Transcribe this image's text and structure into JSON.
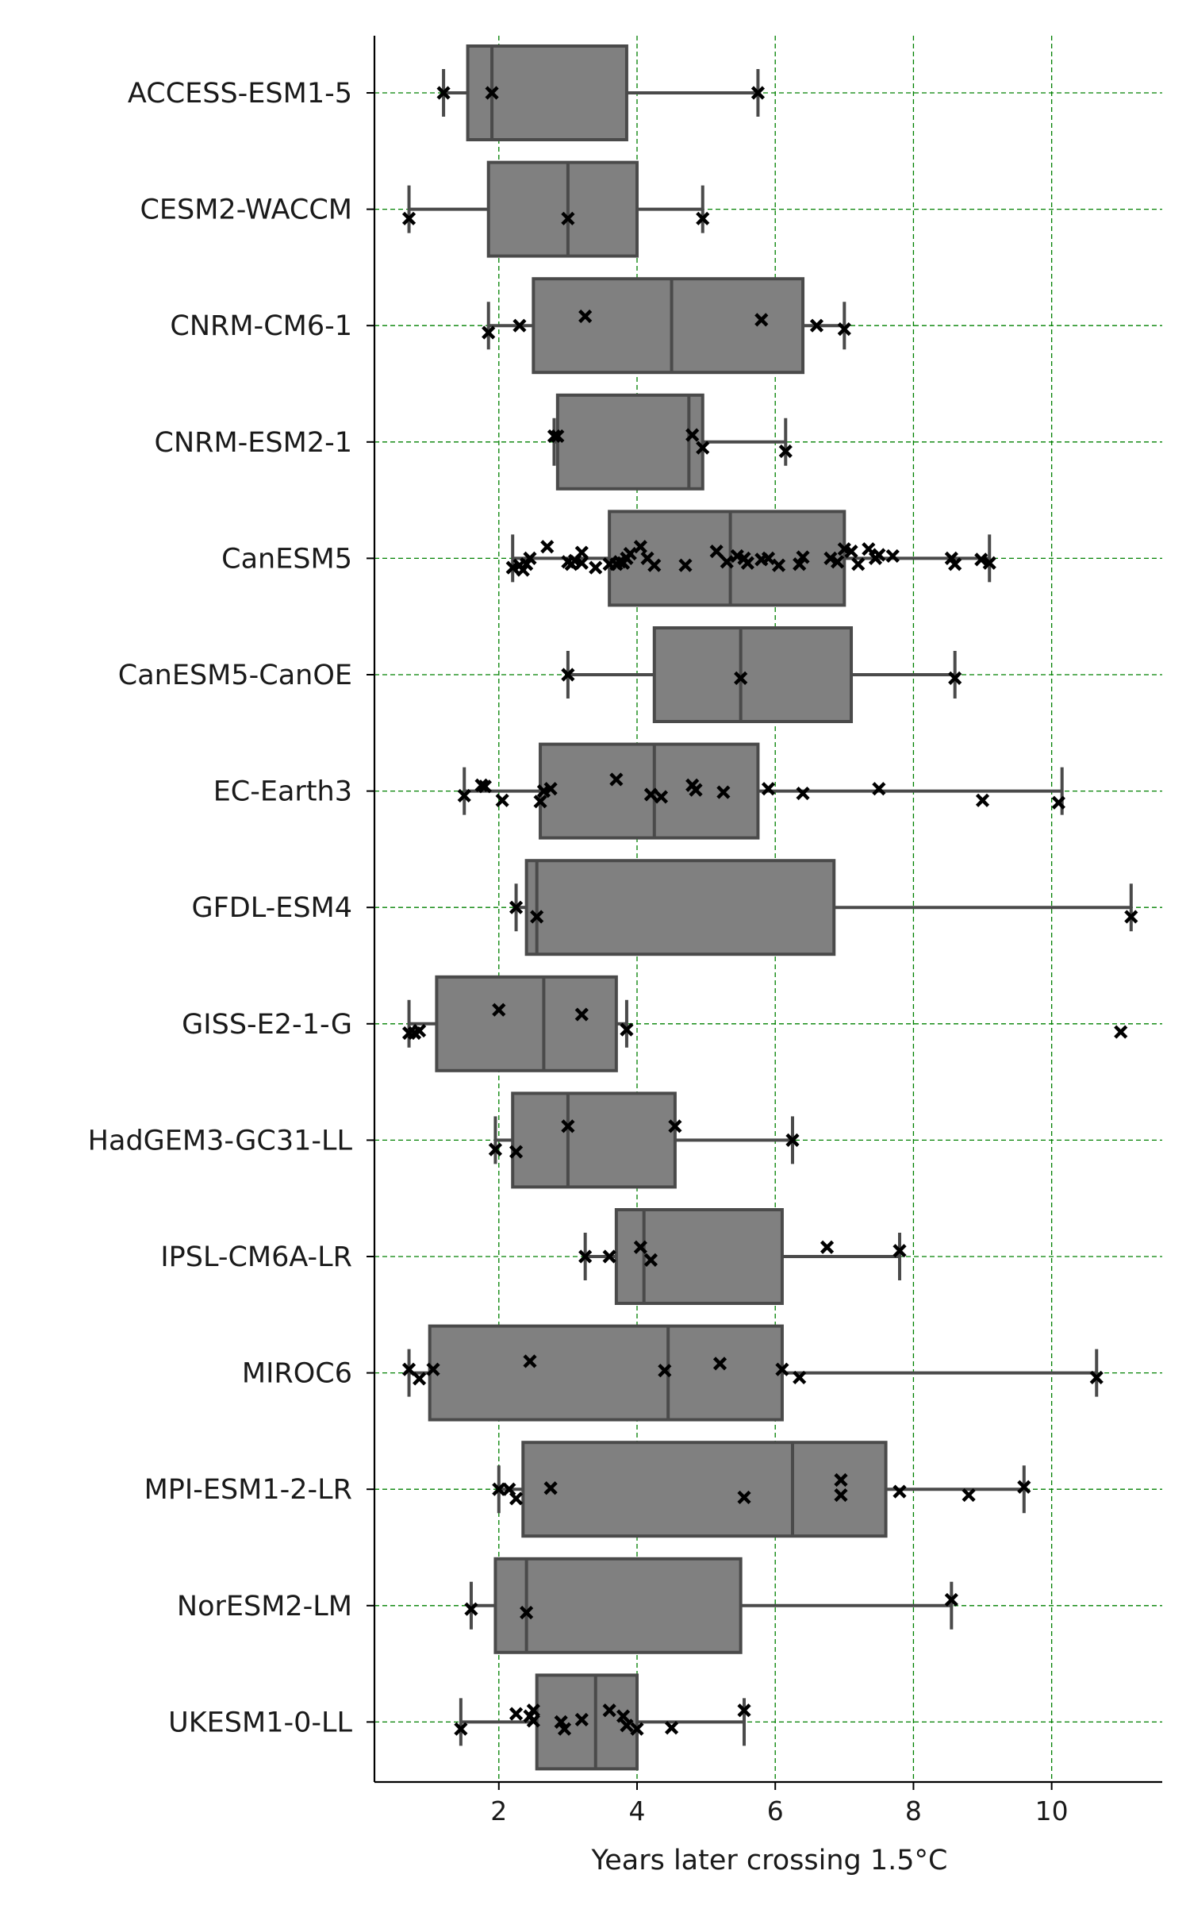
{
  "chart_data": {
    "type": "box",
    "orientation": "horizontal",
    "xlabel": "Years later crossing 1.5°C",
    "ylabel": "",
    "title": "",
    "xlim": [
      0.2,
      11.6
    ],
    "xticks": [
      2,
      4,
      6,
      8,
      10
    ],
    "grid": {
      "x": true,
      "y": true,
      "style": "dashed",
      "color": "#008000"
    },
    "box_color": "#808080",
    "edge_color": "#4a4a4a",
    "marker": "x",
    "marker_color": "#000000",
    "models": [
      {
        "name": "ACCESS-ESM1-5",
        "whisker_low": 1.2,
        "q1": 1.55,
        "median": 1.9,
        "q3": 3.85,
        "whisker_high": 5.75,
        "points": [
          [
            1.2,
            0.0
          ],
          [
            1.9,
            0.0
          ],
          [
            5.75,
            0.0
          ]
        ]
      },
      {
        "name": "CESM2-WACCM",
        "whisker_low": 0.7,
        "q1": 1.85,
        "median": 3.0,
        "q3": 4.0,
        "whisker_high": 4.95,
        "points": [
          [
            0.7,
            0.08
          ],
          [
            3.0,
            0.08
          ],
          [
            4.95,
            0.08
          ]
        ]
      },
      {
        "name": "CNRM-CM6-1",
        "whisker_low": 1.85,
        "q1": 2.5,
        "median": 4.5,
        "q3": 6.4,
        "whisker_high": 7.0,
        "points": [
          [
            1.85,
            0.06
          ],
          [
            2.3,
            0.0
          ],
          [
            3.25,
            -0.08
          ],
          [
            5.8,
            -0.05
          ],
          [
            6.6,
            0.0
          ],
          [
            7.0,
            0.03
          ]
        ]
      },
      {
        "name": "CNRM-ESM2-1",
        "whisker_low": 2.8,
        "q1": 2.85,
        "median": 4.75,
        "q3": 4.95,
        "whisker_high": 6.15,
        "points": [
          [
            2.8,
            -0.05
          ],
          [
            2.85,
            -0.05
          ],
          [
            4.8,
            -0.06
          ],
          [
            4.95,
            0.05
          ],
          [
            6.15,
            0.08
          ]
        ]
      },
      {
        "name": "CanESM5",
        "whisker_low": 2.2,
        "q1": 3.6,
        "median": 5.35,
        "q3": 7.0,
        "whisker_high": 9.1,
        "points": [
          [
            2.2,
            0.08
          ],
          [
            2.3,
            0.06
          ],
          [
            2.35,
            0.1
          ],
          [
            2.4,
            0.05
          ],
          [
            2.45,
            0.0
          ],
          [
            2.7,
            -0.1
          ],
          [
            3.0,
            0.03
          ],
          [
            3.05,
            0.05
          ],
          [
            3.1,
            0.02
          ],
          [
            3.2,
            0.04
          ],
          [
            3.2,
            -0.05
          ],
          [
            3.4,
            0.08
          ],
          [
            3.6,
            0.05
          ],
          [
            3.7,
            0.05
          ],
          [
            3.75,
            0.03
          ],
          [
            3.8,
            0.04
          ],
          [
            3.85,
            0.0
          ],
          [
            3.9,
            -0.04
          ],
          [
            4.05,
            -0.1
          ],
          [
            4.15,
            0.0
          ],
          [
            4.25,
            0.06
          ],
          [
            4.7,
            0.06
          ],
          [
            5.15,
            -0.06
          ],
          [
            5.3,
            0.03
          ],
          [
            5.45,
            -0.02
          ],
          [
            5.55,
            0.0
          ],
          [
            5.6,
            0.04
          ],
          [
            5.8,
            0.01
          ],
          [
            5.9,
            0.0
          ],
          [
            6.05,
            0.06
          ],
          [
            6.35,
            0.05
          ],
          [
            6.4,
            -0.01
          ],
          [
            6.8,
            0.0
          ],
          [
            6.9,
            0.03
          ],
          [
            7.0,
            -0.08
          ],
          [
            7.1,
            -0.06
          ],
          [
            7.2,
            0.05
          ],
          [
            7.35,
            -0.08
          ],
          [
            7.45,
            0.0
          ],
          [
            7.5,
            -0.03
          ],
          [
            7.7,
            -0.02
          ],
          [
            8.55,
            0.0
          ],
          [
            8.6,
            0.05
          ],
          [
            8.98,
            0.01
          ],
          [
            9.1,
            0.04
          ]
        ]
      },
      {
        "name": "CanESM5-CanOE",
        "whisker_low": 3.0,
        "q1": 4.25,
        "median": 5.5,
        "q3": 7.1,
        "whisker_high": 8.6,
        "points": [
          [
            3.0,
            0.0
          ],
          [
            5.5,
            0.03
          ],
          [
            8.6,
            0.03
          ]
        ]
      },
      {
        "name": "EC-Earth3",
        "whisker_low": 1.5,
        "q1": 2.6,
        "median": 4.25,
        "q3": 5.75,
        "whisker_high": 10.15,
        "points": [
          [
            1.5,
            0.04
          ],
          [
            1.75,
            -0.05
          ],
          [
            1.8,
            -0.04
          ],
          [
            2.05,
            0.08
          ],
          [
            2.6,
            0.09
          ],
          [
            2.65,
            0.0
          ],
          [
            2.75,
            -0.02
          ],
          [
            3.7,
            -0.1
          ],
          [
            4.2,
            0.03
          ],
          [
            4.35,
            0.05
          ],
          [
            4.8,
            -0.05
          ],
          [
            4.85,
            -0.01
          ],
          [
            5.25,
            0.01
          ],
          [
            5.9,
            -0.02
          ],
          [
            6.4,
            0.02
          ],
          [
            7.5,
            -0.02
          ],
          [
            9.0,
            0.08
          ],
          [
            10.1,
            0.1
          ]
        ]
      },
      {
        "name": "GFDL-ESM4",
        "whisker_low": 2.25,
        "q1": 2.4,
        "median": 2.55,
        "q3": 6.85,
        "whisker_high": 11.15,
        "points": [
          [
            2.25,
            0.0
          ],
          [
            2.55,
            0.08
          ],
          [
            11.15,
            0.08
          ]
        ]
      },
      {
        "name": "GISS-E2-1-G",
        "whisker_low": 0.7,
        "q1": 1.1,
        "median": 2.65,
        "q3": 3.7,
        "whisker_high": 3.85,
        "points": [
          [
            0.7,
            0.08
          ],
          [
            0.78,
            0.08
          ],
          [
            0.85,
            0.06
          ],
          [
            2.0,
            -0.12
          ],
          [
            3.2,
            -0.08
          ],
          [
            3.85,
            0.05
          ],
          [
            11.0,
            0.07
          ]
        ]
      },
      {
        "name": "HadGEM3-GC31-LL",
        "whisker_low": 1.95,
        "q1": 2.2,
        "median": 3.0,
        "q3": 4.55,
        "whisker_high": 6.25,
        "points": [
          [
            1.95,
            0.08
          ],
          [
            2.25,
            0.1
          ],
          [
            3.0,
            -0.12
          ],
          [
            4.55,
            -0.12
          ],
          [
            6.25,
            0.0
          ]
        ]
      },
      {
        "name": "IPSL-CM6A-LR",
        "whisker_low": 3.25,
        "q1": 3.7,
        "median": 4.1,
        "q3": 6.1,
        "whisker_high": 7.8,
        "points": [
          [
            3.25,
            0.0
          ],
          [
            3.6,
            0.0
          ],
          [
            4.05,
            -0.08
          ],
          [
            4.2,
            0.03
          ],
          [
            6.75,
            -0.08
          ],
          [
            7.8,
            -0.05
          ]
        ]
      },
      {
        "name": "MIROC6",
        "whisker_low": 0.7,
        "q1": 1.0,
        "median": 4.45,
        "q3": 6.1,
        "whisker_high": 10.65,
        "points": [
          [
            0.7,
            -0.03
          ],
          [
            0.85,
            0.05
          ],
          [
            1.05,
            -0.03
          ],
          [
            2.45,
            -0.1
          ],
          [
            4.4,
            -0.02
          ],
          [
            5.2,
            -0.08
          ],
          [
            6.1,
            -0.03
          ],
          [
            6.35,
            0.04
          ],
          [
            10.65,
            0.04
          ]
        ]
      },
      {
        "name": "MPI-ESM1-2-LR",
        "whisker_low": 2.0,
        "q1": 2.35,
        "median": 6.25,
        "q3": 7.6,
        "whisker_high": 9.6,
        "points": [
          [
            2.0,
            0.0
          ],
          [
            2.15,
            0.0
          ],
          [
            2.25,
            0.08
          ],
          [
            2.75,
            -0.01
          ],
          [
            5.55,
            0.07
          ],
          [
            6.95,
            -0.08
          ],
          [
            6.95,
            0.05
          ],
          [
            7.8,
            0.02
          ],
          [
            8.8,
            0.05
          ],
          [
            9.6,
            -0.02
          ]
        ]
      },
      {
        "name": "NorESM2-LM",
        "whisker_low": 1.6,
        "q1": 1.95,
        "median": 2.4,
        "q3": 5.5,
        "whisker_high": 8.55,
        "points": [
          [
            1.6,
            0.03
          ],
          [
            2.4,
            0.06
          ],
          [
            8.55,
            -0.05
          ]
        ]
      },
      {
        "name": "UKESM1-0-LL",
        "whisker_low": 1.45,
        "q1": 2.55,
        "median": 3.4,
        "q3": 4.0,
        "whisker_high": 5.55,
        "points": [
          [
            1.45,
            0.06
          ],
          [
            2.25,
            -0.07
          ],
          [
            2.45,
            -0.05
          ],
          [
            2.5,
            -0.1
          ],
          [
            2.5,
            -0.01
          ],
          [
            2.9,
            0.0
          ],
          [
            2.95,
            0.06
          ],
          [
            3.2,
            -0.02
          ],
          [
            3.6,
            -0.1
          ],
          [
            3.8,
            -0.05
          ],
          [
            3.85,
            0.03
          ],
          [
            4.0,
            0.06
          ],
          [
            4.5,
            0.05
          ],
          [
            5.55,
            -0.1
          ]
        ]
      }
    ]
  }
}
